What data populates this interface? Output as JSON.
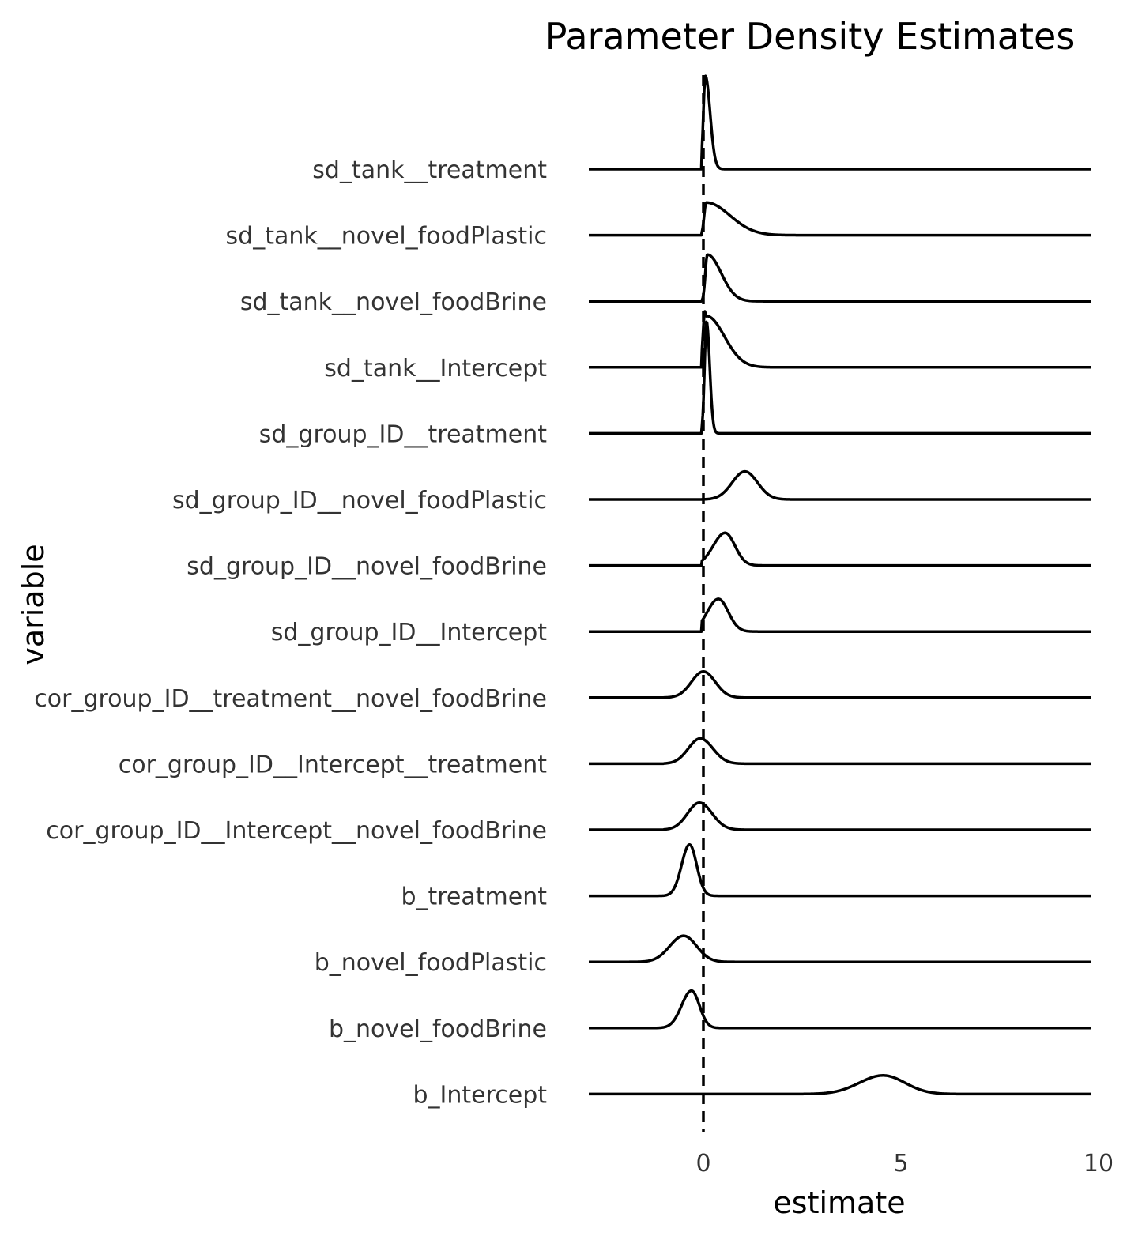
{
  "chart_data": {
    "type": "ridgeline",
    "title": "Parameter Density Estimates",
    "xlabel": "estimate",
    "ylabel": "variable",
    "xlim": [
      -2.9,
      9.8
    ],
    "xticks": [
      0,
      5,
      10
    ],
    "reference_line": {
      "x": 0,
      "style": "dashed"
    },
    "grid": false,
    "color": "#000000",
    "series": [
      {
        "name": "sd_tank__treatment",
        "peak": 0.05,
        "peak_height": 1.0,
        "left_sd": 0.05,
        "right_sd": 0.12,
        "support_min": -0.05
      },
      {
        "name": "sd_tank__novel_foodPlastic",
        "peak": 0.07,
        "peak_height": 0.35,
        "left_sd": 0.05,
        "right_sd": 0.6,
        "support_min": -0.05
      },
      {
        "name": "sd_tank__novel_foodBrine",
        "peak": 0.1,
        "peak_height": 0.5,
        "left_sd": 0.05,
        "right_sd": 0.35,
        "support_min": -0.05
      },
      {
        "name": "sd_tank__Intercept",
        "peak": 0.08,
        "peak_height": 0.55,
        "left_sd": 0.05,
        "right_sd": 0.45,
        "support_min": -0.05,
        "extra": {
          "peak": 0.04,
          "peak_height": 0.6,
          "sd": 0.05
        }
      },
      {
        "name": "sd_group_ID__treatment",
        "peak": 0.08,
        "peak_height": 1.2,
        "left_sd": 0.05,
        "right_sd": 0.08,
        "support_min": -0.05
      },
      {
        "name": "sd_group_ID__novel_foodPlastic",
        "peak": 1.05,
        "peak_height": 0.3,
        "left_sd": 0.32,
        "right_sd": 0.32,
        "support_min": -0.05
      },
      {
        "name": "sd_group_ID__novel_foodBrine",
        "peak": 0.55,
        "peak_height": 0.35,
        "left_sd": 0.3,
        "right_sd": 0.25,
        "support_min": -0.05
      },
      {
        "name": "sd_group_ID__Intercept",
        "peak": 0.38,
        "peak_height": 0.35,
        "left_sd": 0.28,
        "right_sd": 0.25,
        "support_min": -0.05
      },
      {
        "name": "cor_group_ID__treatment__novel_foodBrine",
        "peak": 0.0,
        "peak_height": 0.28,
        "left_sd": 0.3,
        "right_sd": 0.3,
        "support_min": -1.0
      },
      {
        "name": "cor_group_ID__Intercept__treatment",
        "peak": -0.08,
        "peak_height": 0.27,
        "left_sd": 0.3,
        "right_sd": 0.32,
        "support_min": -1.0
      },
      {
        "name": "cor_group_ID__Intercept__novel_foodBrine",
        "peak": -0.1,
        "peak_height": 0.29,
        "left_sd": 0.3,
        "right_sd": 0.32,
        "support_min": -1.0
      },
      {
        "name": "b_treatment",
        "peak": -0.35,
        "peak_height": 0.55,
        "left_sd": 0.2,
        "right_sd": 0.18
      },
      {
        "name": "b_novel_foodPlastic",
        "peak": -0.5,
        "peak_height": 0.28,
        "left_sd": 0.35,
        "right_sd": 0.33
      },
      {
        "name": "b_novel_foodBrine",
        "peak": -0.3,
        "peak_height": 0.4,
        "left_sd": 0.25,
        "right_sd": 0.2
      },
      {
        "name": "b_Intercept",
        "peak": 4.55,
        "peak_height": 0.2,
        "left_sd": 0.6,
        "right_sd": 0.55
      }
    ]
  }
}
